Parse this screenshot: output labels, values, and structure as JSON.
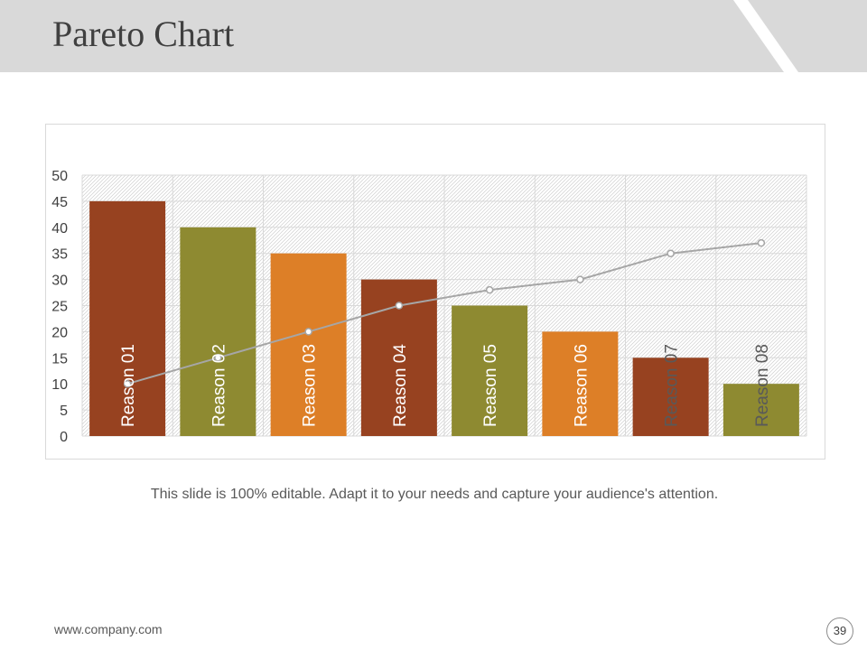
{
  "slide": {
    "title": "Pareto Chart",
    "caption": "This slide is 100% editable. Adapt it to your needs and capture your audience's attention.",
    "footer_url": "www.company.com",
    "page_number": "39"
  },
  "colors": {
    "header_band": "#d9d9d9",
    "rust": "#974220",
    "olive": "#8e8a31",
    "orange": "#dd7f27",
    "line": "#a6a6a6",
    "bar_label_light": "#ffffff",
    "bar_label_dark": "#595959"
  },
  "chart_data": {
    "type": "bar",
    "categories": [
      "Reason  01",
      "Reason 02",
      "Reason 03",
      "Reason 04",
      "Reason 05",
      "Reason 06",
      "Reason 07",
      "Reason 08"
    ],
    "series": [
      {
        "type": "bar",
        "values": [
          45,
          40,
          35,
          30,
          25,
          20,
          15,
          10
        ],
        "colors": [
          "#974220",
          "#8e8a31",
          "#dd7f27",
          "#974220",
          "#8e8a31",
          "#dd7f27",
          "#974220",
          "#8e8a31"
        ]
      },
      {
        "type": "line",
        "values": [
          10,
          15,
          20,
          25,
          28,
          30,
          35,
          37
        ],
        "color": "#a6a6a6"
      }
    ],
    "label_colors": [
      "#ffffff",
      "#ffffff",
      "#ffffff",
      "#ffffff",
      "#ffffff",
      "#ffffff",
      "#595959",
      "#595959"
    ],
    "ylim": [
      0,
      50
    ],
    "yticks": [
      0,
      5,
      10,
      15,
      20,
      25,
      30,
      35,
      40,
      45,
      50
    ],
    "title": "",
    "xlabel": "",
    "ylabel": "",
    "grid": true,
    "legend": "none"
  }
}
